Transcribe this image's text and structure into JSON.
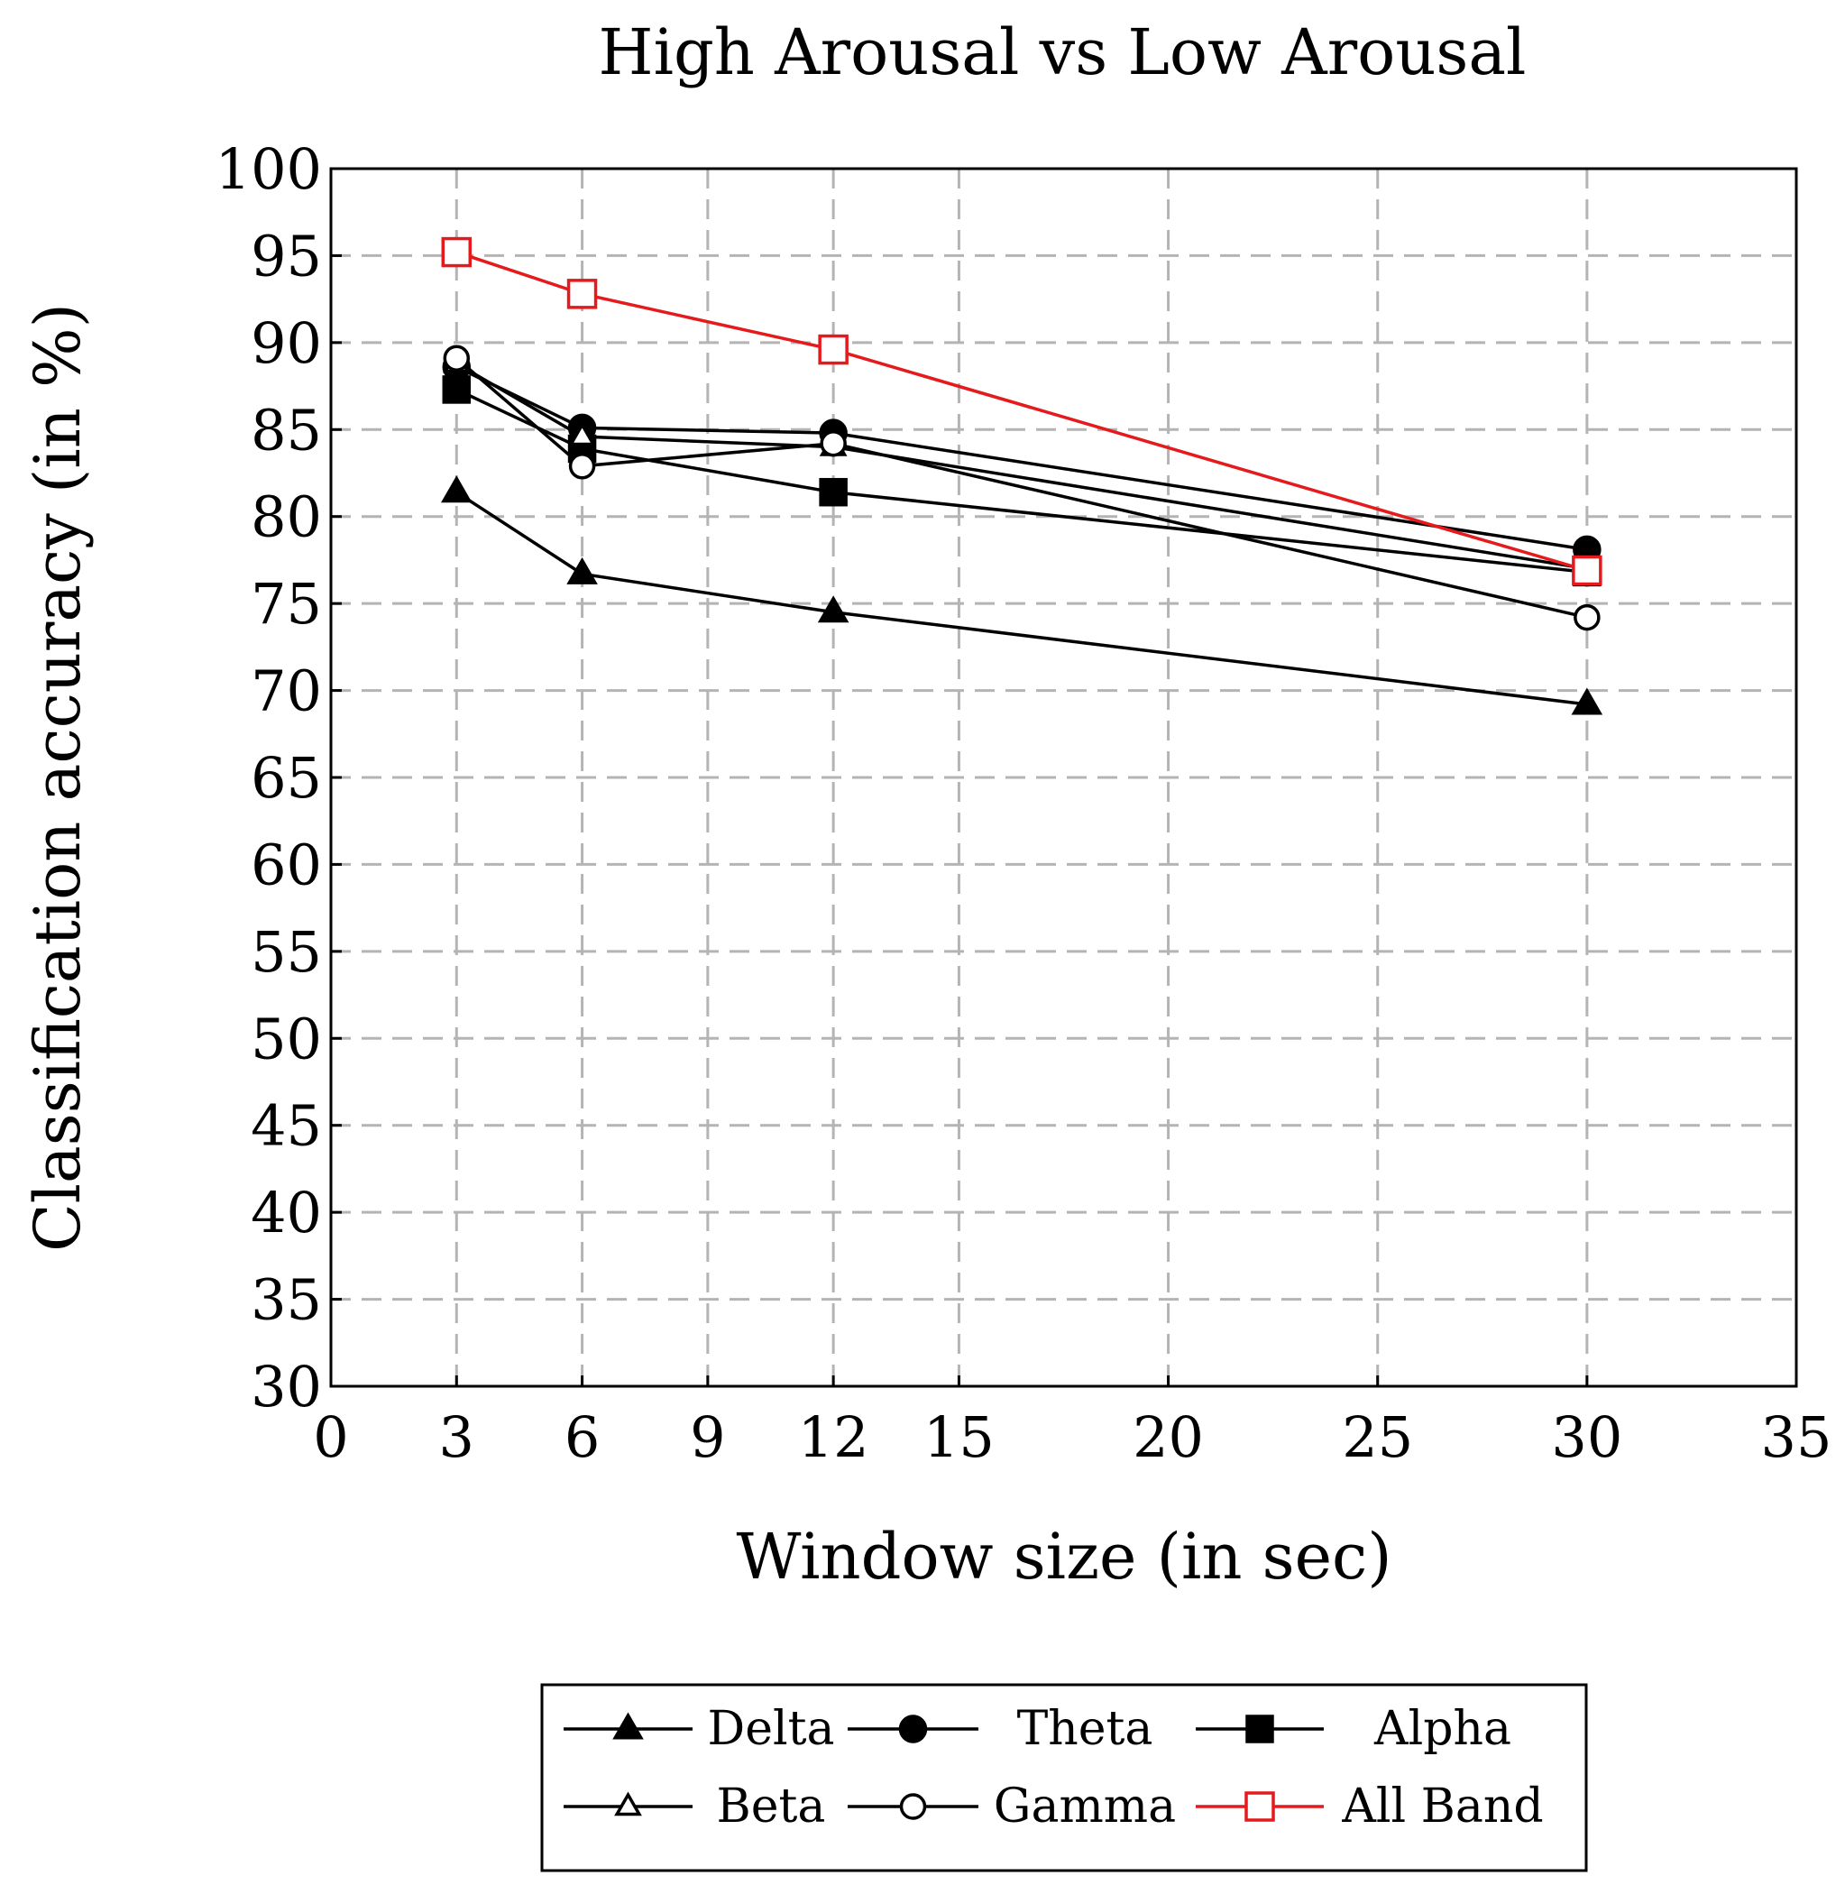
{
  "chart_data": {
    "type": "line",
    "title": "High Arousal vs Low Arousal",
    "xlabel": "Window size (in sec)",
    "ylabel": "Classification accuracy (in %)",
    "xlim": [
      0,
      35
    ],
    "ylim": [
      30,
      100
    ],
    "xticks": [
      0,
      3,
      6,
      9,
      12,
      15,
      20,
      25,
      30,
      35
    ],
    "yticks": [
      30,
      35,
      40,
      45,
      50,
      55,
      60,
      65,
      70,
      75,
      80,
      85,
      90,
      95,
      100
    ],
    "grid": true,
    "legend_position": "bottom-center",
    "x": [
      3,
      6,
      12,
      30
    ],
    "series": [
      {
        "name": "Delta",
        "values": [
          81.4,
          76.7,
          74.5,
          69.2
        ],
        "marker": "triangle-filled",
        "color": "#000000"
      },
      {
        "name": "Theta",
        "values": [
          88.6,
          85.1,
          84.8,
          78.1
        ],
        "marker": "circle-filled",
        "color": "#000000"
      },
      {
        "name": "Alpha",
        "values": [
          87.3,
          83.9,
          81.4,
          76.8
        ],
        "marker": "square-filled",
        "color": "#000000"
      },
      {
        "name": "Beta",
        "values": [
          88.8,
          84.6,
          84.0,
          77.0
        ],
        "marker": "triangle-open",
        "color": "#000000"
      },
      {
        "name": "Gamma",
        "values": [
          89.1,
          82.9,
          84.2,
          74.2
        ],
        "marker": "circle-open",
        "color": "#000000"
      },
      {
        "name": "All Band",
        "values": [
          95.2,
          92.8,
          89.6,
          76.9
        ],
        "marker": "square-open",
        "color": "#e41a1c"
      }
    ]
  }
}
